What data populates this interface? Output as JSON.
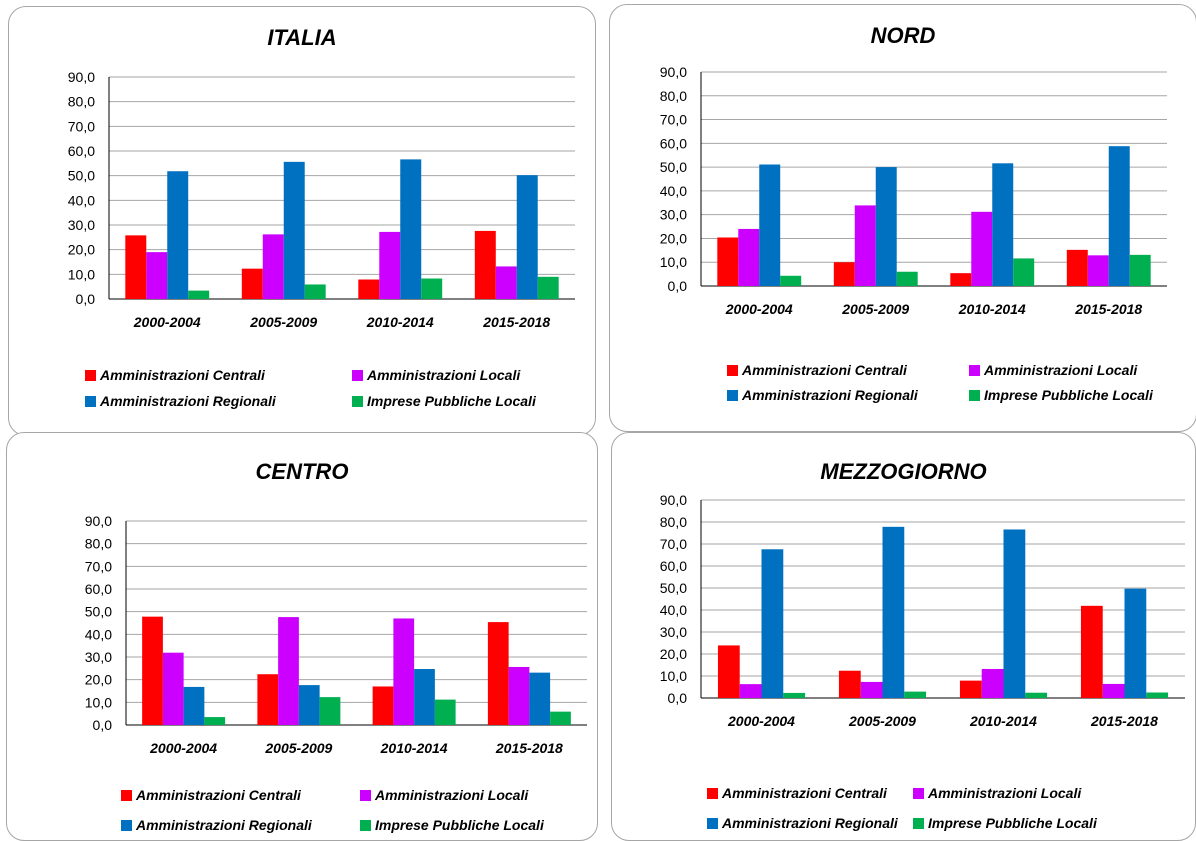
{
  "series_colors": [
    "#ff0000",
    "#cc00ff",
    "#0070c0",
    "#00b050"
  ],
  "chart_data": [
    {
      "type": "bar",
      "title": "ITALIA",
      "categories": [
        "2000-2004",
        "2005-2009",
        "2010-2014",
        "2015-2018"
      ],
      "ylim": [
        0,
        90
      ],
      "yticks": [
        "0,0",
        "10,0",
        "20,0",
        "30,0",
        "40,0",
        "50,0",
        "60,0",
        "70,0",
        "80,0",
        "90,0"
      ],
      "grid": true,
      "legend_position": "bottom",
      "series": [
        {
          "name": "Amministrazioni Centrali",
          "values": [
            25.8,
            12.3,
            7.9,
            27.6
          ]
        },
        {
          "name": "Amministrazioni Locali",
          "values": [
            19.0,
            26.2,
            27.2,
            13.2
          ]
        },
        {
          "name": "Amministrazioni Regionali",
          "values": [
            51.8,
            55.6,
            56.6,
            50.2
          ]
        },
        {
          "name": "Imprese Pubbliche Locali",
          "values": [
            3.4,
            5.9,
            8.3,
            9.0
          ]
        }
      ]
    },
    {
      "type": "bar",
      "title": "NORD",
      "categories": [
        "2000-2004",
        "2005-2009",
        "2010-2014",
        "2015-2018"
      ],
      "ylim": [
        0,
        90
      ],
      "yticks": [
        "0,0",
        "10,0",
        "20,0",
        "30,0",
        "40,0",
        "50,0",
        "60,0",
        "70,0",
        "80,0",
        "90,0"
      ],
      "grid": true,
      "legend_position": "bottom",
      "series": [
        {
          "name": "Amministrazioni Centrali",
          "values": [
            20.4,
            10.0,
            5.4,
            15.2
          ]
        },
        {
          "name": "Amministrazioni Locali",
          "values": [
            24.0,
            33.9,
            31.2,
            12.9
          ]
        },
        {
          "name": "Amministrazioni Regionali",
          "values": [
            51.1,
            50.0,
            51.6,
            58.8
          ]
        },
        {
          "name": "Imprese Pubbliche Locali",
          "values": [
            4.3,
            6.0,
            11.6,
            13.1
          ]
        }
      ]
    },
    {
      "type": "bar",
      "title": "CENTRO",
      "categories": [
        "2000-2004",
        "2005-2009",
        "2010-2014",
        "2015-2018"
      ],
      "ylim": [
        0,
        90
      ],
      "yticks": [
        "0,0",
        "10,0",
        "20,0",
        "30,0",
        "40,0",
        "50,0",
        "60,0",
        "70,0",
        "80,0",
        "90,0"
      ],
      "grid": true,
      "legend_position": "bottom",
      "series": [
        {
          "name": "Amministrazioni Centrali",
          "values": [
            47.8,
            22.4,
            17.0,
            45.4
          ]
        },
        {
          "name": "Amministrazioni Locali",
          "values": [
            31.9,
            47.6,
            47.0,
            25.6
          ]
        },
        {
          "name": "Amministrazioni Regionali",
          "values": [
            16.8,
            17.6,
            24.7,
            23.1
          ]
        },
        {
          "name": "Imprese Pubbliche Locali",
          "values": [
            3.5,
            12.3,
            11.2,
            5.9
          ]
        }
      ]
    },
    {
      "type": "bar",
      "title": "MEZZOGIORNO",
      "categories": [
        "2000-2004",
        "2005-2009",
        "2010-2014",
        "2015-2018"
      ],
      "ylim": [
        0,
        90
      ],
      "yticks": [
        "0,0",
        "10,0",
        "20,0",
        "30,0",
        "40,0",
        "50,0",
        "60,0",
        "70,0",
        "80,0",
        "90,0"
      ],
      "grid": true,
      "legend_position": "bottom",
      "series": [
        {
          "name": "Amministrazioni Centrali",
          "values": [
            23.9,
            12.4,
            7.9,
            41.9
          ]
        },
        {
          "name": "Amministrazioni Locali",
          "values": [
            6.3,
            7.3,
            13.2,
            6.4
          ]
        },
        {
          "name": "Amministrazioni Regionali",
          "values": [
            67.6,
            77.8,
            76.6,
            49.7
          ]
        },
        {
          "name": "Imprese Pubbliche Locali",
          "values": [
            2.3,
            2.9,
            2.4,
            2.5
          ]
        }
      ]
    }
  ]
}
